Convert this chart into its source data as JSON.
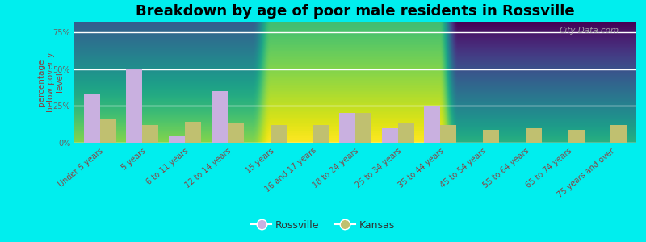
{
  "title": "Breakdown by age of poor male residents in Rossville",
  "categories": [
    "Under 5 years",
    "5 years",
    "6 to 11 years",
    "12 to 14 years",
    "15 years",
    "16 and 17 years",
    "18 to 24 years",
    "25 to 34 years",
    "35 to 44 years",
    "45 to 54 years",
    "55 to 64 years",
    "65 to 74 years",
    "75 years and over"
  ],
  "rossville_values": [
    33,
    50,
    5,
    35,
    0,
    0,
    20,
    10,
    25,
    0,
    0,
    0,
    0
  ],
  "kansas_values": [
    16,
    12,
    14,
    13,
    12,
    12,
    20,
    13,
    12,
    9,
    10,
    9,
    12
  ],
  "rossville_color": "#c9b0e0",
  "kansas_color": "#c0c070",
  "ylim": [
    0,
    82
  ],
  "yticks": [
    0,
    25,
    50,
    75
  ],
  "ytick_labels": [
    "0%",
    "25%",
    "50%",
    "75%"
  ],
  "ylabel": "percentage\nbelow poverty\nlevel",
  "plot_bg_top": "#d8eec8",
  "plot_bg_bottom": "#f0f8e8",
  "outer_bg": "#00eeee",
  "bar_width": 0.38,
  "title_fontsize": 13,
  "tick_fontsize": 7,
  "ylabel_fontsize": 7.5,
  "ylabel_color": "#884444",
  "xtick_color": "#884444",
  "ytick_color": "#666666",
  "watermark": "City-Data.com",
  "legend_labels": [
    "Rossville",
    "Kansas"
  ]
}
